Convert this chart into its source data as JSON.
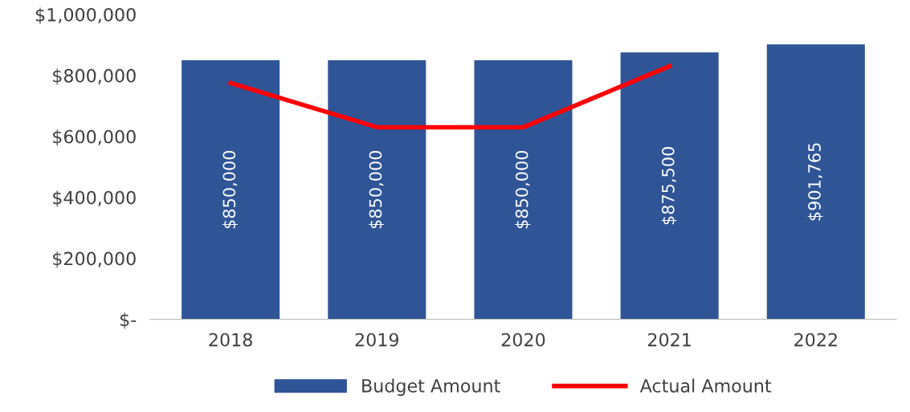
{
  "chart_data": {
    "type": "bar",
    "categories": [
      "2018",
      "2019",
      "2020",
      "2021",
      "2022"
    ],
    "series": [
      {
        "name": "Budget Amount",
        "color": "#2f5597",
        "values": [
          850000,
          850000,
          850000,
          875500,
          901765
        ],
        "value_labels": [
          "$850,000",
          "$850,000",
          "$850,000",
          "$875,500",
          "$901,765"
        ]
      },
      {
        "name": "Actual Amount",
        "type": "line",
        "color": "#ff0000",
        "values": [
          775000,
          630000,
          630000,
          830000,
          null
        ]
      }
    ],
    "ylim": [
      0,
      1000000
    ],
    "yticks": [
      {
        "value": 0,
        "label": "$-"
      },
      {
        "value": 200000,
        "label": "$200,000"
      },
      {
        "value": 400000,
        "label": "$400,000"
      },
      {
        "value": 600000,
        "label": "$600,000"
      },
      {
        "value": 800000,
        "label": "$800,000"
      },
      {
        "value": 1000000,
        "label": "$1,000,000"
      }
    ],
    "grid": false,
    "legend": "bottom",
    "marker": "none",
    "line_style": "solid"
  }
}
